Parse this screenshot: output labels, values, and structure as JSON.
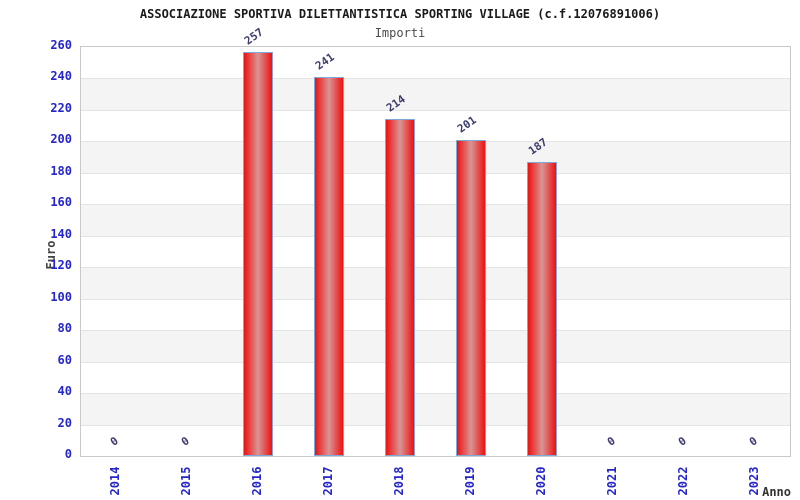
{
  "title": "ASSOCIAZIONE SPORTIVA DILETTANTISTICA SPORTING VILLAGE (c.f.12076891006)",
  "subtitle": "Importi",
  "chart_data": {
    "type": "bar",
    "title": "ASSOCIAZIONE SPORTIVA DILETTANTISTICA SPORTING VILLAGE (c.f.12076891006)",
    "subtitle": "Importi",
    "categories": [
      "2014",
      "2015",
      "2016",
      "2017",
      "2018",
      "2019",
      "2020",
      "2021",
      "2022",
      "2023"
    ],
    "values": [
      0,
      0,
      257,
      241,
      214,
      201,
      187,
      0,
      0,
      0
    ],
    "xlabel": "Anno",
    "ylabel": "Euro",
    "ylim": [
      0,
      260
    ],
    "ytick_step": 20,
    "yticks": [
      0,
      20,
      40,
      60,
      80,
      100,
      120,
      140,
      160,
      180,
      200,
      220,
      240,
      260
    ],
    "legend": "none",
    "grid": "horizontal gridlines with alternating shaded bands",
    "colors": {
      "bar_fill": "#ee1111",
      "bar_highlight": "#d89595",
      "bar_border": "#7fa8d9",
      "tick_label": "#2525cc",
      "value_label": "#3c3c6e",
      "band_shade": "#f4f4f4",
      "gridline": "#e4e4e4",
      "plot_border": "#c9c9c9",
      "title_color": "#1a1a1a",
      "subtitle_color": "#4d4d4d",
      "axis_title_color": "#444444"
    }
  }
}
